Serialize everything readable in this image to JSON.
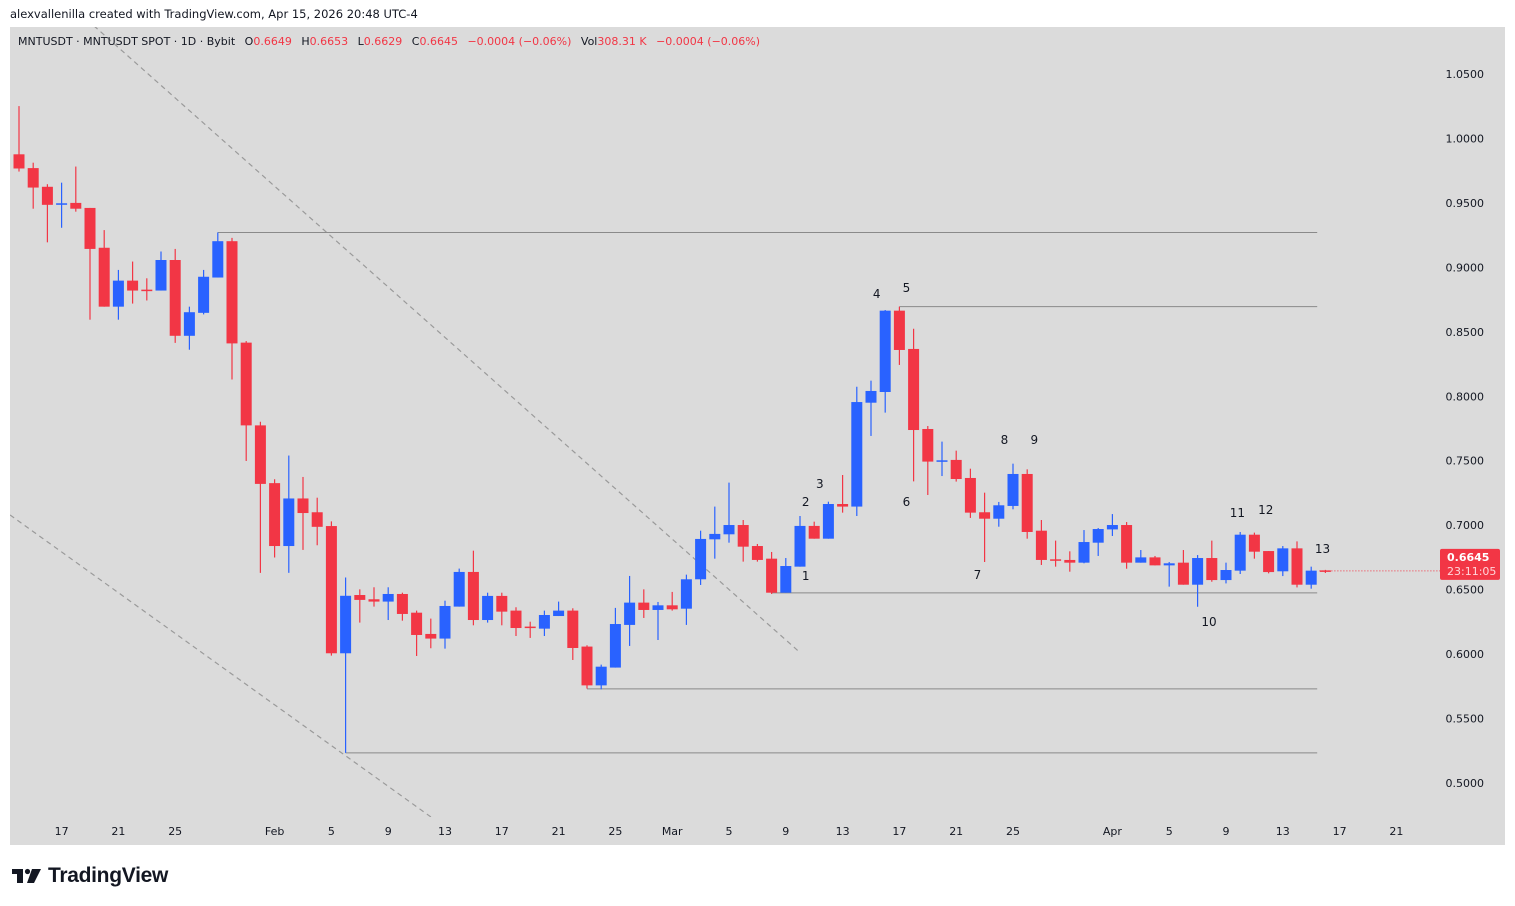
{
  "credit": "alexvallenilla created with TradingView.com, Apr 15, 2026 20:48 UTC-4",
  "legend": {
    "symbol": "MNTUSDT · MNTUSDT SPOT · 1D · Bybit",
    "o_label": "O",
    "o_value": "0.6649",
    "h_label": "H",
    "h_value": "0.6653",
    "l_label": "L",
    "l_value": "0.6629",
    "c_label": "C",
    "c_value": "0.6645",
    "change": "−0.0004 (−0.06%)",
    "vol_label": "Vol",
    "vol_value": "308.31 K",
    "vol_change": "−0.0004 (−0.06%)"
  },
  "brand": "TradingView",
  "colors": {
    "up": "#2962ff",
    "down": "#f23645",
    "background": "#dbdbdb",
    "level_line": "#8a8a8a",
    "trend_line": "#9a9a9a"
  },
  "chart_data": {
    "type": "candlestick",
    "title": "MNTUSDT · MNTUSDT SPOT · 1D · Bybit",
    "ylim": [
      0.47,
      1.08
    ],
    "y_ticks": [
      "0.5000",
      "0.5500",
      "0.6000",
      "0.6500",
      "0.7000",
      "0.7500",
      "0.8000",
      "0.8500",
      "0.9000",
      "0.9500",
      "1.0000",
      "1.0500"
    ],
    "x_ticks": [
      {
        "label": "17",
        "index": 3
      },
      {
        "label": "21",
        "index": 7
      },
      {
        "label": "25",
        "index": 11
      },
      {
        "label": "Feb",
        "index": 18
      },
      {
        "label": "5",
        "index": 22
      },
      {
        "label": "9",
        "index": 26
      },
      {
        "label": "13",
        "index": 30
      },
      {
        "label": "17",
        "index": 34
      },
      {
        "label": "21",
        "index": 38
      },
      {
        "label": "25",
        "index": 42
      },
      {
        "label": "Mar",
        "index": 46
      },
      {
        "label": "5",
        "index": 50
      },
      {
        "label": "9",
        "index": 54
      },
      {
        "label": "13",
        "index": 58
      },
      {
        "label": "17",
        "index": 62
      },
      {
        "label": "21",
        "index": 66
      },
      {
        "label": "25",
        "index": 70
      },
      {
        "label": "Apr",
        "index": 77
      },
      {
        "label": "5",
        "index": 81
      },
      {
        "label": "9",
        "index": 85
      },
      {
        "label": "13",
        "index": 89
      },
      {
        "label": "17",
        "index": 93
      },
      {
        "label": "21",
        "index": 97
      }
    ],
    "ohlc": [
      [
        0.9877,
        1.0251,
        0.9743,
        0.9767
      ],
      [
        0.977,
        0.9812,
        0.9455,
        0.9619
      ],
      [
        0.9625,
        0.9645,
        0.9194,
        0.9485
      ],
      [
        0.9491,
        0.9657,
        0.9307,
        0.9497
      ],
      [
        0.95,
        0.9782,
        0.9432,
        0.9455
      ],
      [
        0.9461,
        0.9461,
        0.8594,
        0.9143
      ],
      [
        0.9152,
        0.9289,
        0.8695,
        0.8695
      ],
      [
        0.8695,
        0.898,
        0.8594,
        0.8897
      ],
      [
        0.8897,
        0.9045,
        0.8719,
        0.882
      ],
      [
        0.8827,
        0.8915,
        0.8743,
        0.882
      ],
      [
        0.882,
        0.9123,
        0.882,
        0.9057
      ],
      [
        0.9057,
        0.9143,
        0.8414,
        0.8469
      ],
      [
        0.8469,
        0.8695,
        0.8361,
        0.8652
      ],
      [
        0.8647,
        0.898,
        0.8635,
        0.8927
      ],
      [
        0.8921,
        0.9271,
        0.8921,
        0.9203
      ],
      [
        0.9203,
        0.9229,
        0.813,
        0.841
      ],
      [
        0.8416,
        0.8428,
        0.7498,
        0.7774
      ],
      [
        0.7774,
        0.7802,
        0.663,
        0.732
      ],
      [
        0.7326,
        0.7356,
        0.6749,
        0.6838
      ],
      [
        0.6838,
        0.754,
        0.663,
        0.7207
      ],
      [
        0.7207,
        0.7374,
        0.6808,
        0.7094
      ],
      [
        0.71,
        0.7213,
        0.6844,
        0.6987
      ],
      [
        0.6993,
        0.7029,
        0.5988,
        0.6006
      ],
      [
        0.6006,
        0.6594,
        0.5233,
        0.6452
      ],
      [
        0.6458,
        0.6502,
        0.6244,
        0.642
      ],
      [
        0.6425,
        0.6518,
        0.6368,
        0.6407
      ],
      [
        0.6407,
        0.6518,
        0.6264,
        0.6466
      ],
      [
        0.6466,
        0.6476,
        0.6259,
        0.6311
      ],
      [
        0.6321,
        0.6337,
        0.5985,
        0.6148
      ],
      [
        0.6156,
        0.6275,
        0.6045,
        0.612
      ],
      [
        0.612,
        0.6414,
        0.6042,
        0.6373
      ],
      [
        0.6368,
        0.6663,
        0.6368,
        0.6637
      ],
      [
        0.6637,
        0.6802,
        0.6223,
        0.6264
      ],
      [
        0.6264,
        0.6476,
        0.6244,
        0.6451
      ],
      [
        0.6451,
        0.6476,
        0.6223,
        0.6329
      ],
      [
        0.6337,
        0.6363,
        0.614,
        0.6202
      ],
      [
        0.6213,
        0.6251,
        0.6125,
        0.6202
      ],
      [
        0.6197,
        0.6337,
        0.614,
        0.6303
      ],
      [
        0.6295,
        0.6407,
        0.6295,
        0.6337
      ],
      [
        0.6337,
        0.6355,
        0.5954,
        0.6047
      ],
      [
        0.6058,
        0.6068,
        0.5732,
        0.5757
      ],
      [
        0.5757,
        0.5918,
        0.5726,
        0.5902
      ],
      [
        0.5895,
        0.6358,
        0.5895,
        0.6233
      ],
      [
        0.6226,
        0.6606,
        0.6063,
        0.6399
      ],
      [
        0.6399,
        0.6502,
        0.628,
        0.6342
      ],
      [
        0.6342,
        0.6404,
        0.6109,
        0.6378
      ],
      [
        0.6378,
        0.6482,
        0.6337,
        0.6347
      ],
      [
        0.6352,
        0.6616,
        0.6226,
        0.658
      ],
      [
        0.658,
        0.6957,
        0.6536,
        0.6893
      ],
      [
        0.689,
        0.7144,
        0.674,
        0.6932
      ],
      [
        0.6929,
        0.733,
        0.6864,
        0.7001
      ],
      [
        0.7001,
        0.704,
        0.6717,
        0.6833
      ],
      [
        0.6838,
        0.6854,
        0.6717,
        0.673
      ],
      [
        0.674,
        0.6792,
        0.6466,
        0.6476
      ],
      [
        0.6476,
        0.6745,
        0.6476,
        0.6683
      ],
      [
        0.6678,
        0.7071,
        0.6678,
        0.6994
      ],
      [
        0.6994,
        0.7027,
        0.6895,
        0.6895
      ],
      [
        0.6895,
        0.7182,
        0.6895,
        0.7164
      ],
      [
        0.7164,
        0.7389,
        0.7097,
        0.7144
      ],
      [
        0.7144,
        0.8074,
        0.7071,
        0.7955
      ],
      [
        0.795,
        0.8121,
        0.7692,
        0.8041
      ],
      [
        0.8033,
        0.8669,
        0.7873,
        0.8664
      ],
      [
        0.8664,
        0.8695,
        0.8243,
        0.8359
      ],
      [
        0.8367,
        0.8524,
        0.734,
        0.7738
      ],
      [
        0.7746,
        0.7769,
        0.7234,
        0.7493
      ],
      [
        0.7493,
        0.7648,
        0.7381,
        0.7503
      ],
      [
        0.7506,
        0.7578,
        0.7338,
        0.7358
      ],
      [
        0.7366,
        0.7438,
        0.7056,
        0.7097
      ],
      [
        0.71,
        0.7252,
        0.6714,
        0.705
      ],
      [
        0.705,
        0.718,
        0.6988,
        0.7154
      ],
      [
        0.7149,
        0.7477,
        0.7123,
        0.7397
      ],
      [
        0.7397,
        0.7433,
        0.6895,
        0.6947
      ],
      [
        0.6957,
        0.704,
        0.6691,
        0.673
      ],
      [
        0.6735,
        0.688,
        0.6678,
        0.6724
      ],
      [
        0.673,
        0.6797,
        0.6639,
        0.6709
      ],
      [
        0.6709,
        0.6962,
        0.6704,
        0.6869
      ],
      [
        0.6864,
        0.6978,
        0.6761,
        0.697
      ],
      [
        0.6967,
        0.7086,
        0.6916,
        0.7001
      ],
      [
        0.7001,
        0.7024,
        0.6662,
        0.6709
      ],
      [
        0.6709,
        0.6807,
        0.6709,
        0.675
      ],
      [
        0.675,
        0.6761,
        0.6688,
        0.6688
      ],
      [
        0.6688,
        0.6714,
        0.6523,
        0.6704
      ],
      [
        0.6709,
        0.6807,
        0.6538,
        0.6538
      ],
      [
        0.6538,
        0.6768,
        0.6367,
        0.6745
      ],
      [
        0.6745,
        0.688,
        0.6561,
        0.6574
      ],
      [
        0.6574,
        0.6709,
        0.6548,
        0.6652
      ],
      [
        0.6647,
        0.6947,
        0.6621,
        0.6926
      ],
      [
        0.6926,
        0.6942,
        0.674,
        0.6794
      ],
      [
        0.6799,
        0.6799,
        0.6626,
        0.6636
      ],
      [
        0.6642,
        0.6838,
        0.6605,
        0.682
      ],
      [
        0.682,
        0.6874,
        0.6517,
        0.6538
      ],
      [
        0.6538,
        0.6678,
        0.6507,
        0.6647
      ],
      [
        0.6649,
        0.6653,
        0.6629,
        0.6645
      ]
    ],
    "levels": [
      {
        "price": 0.927,
        "from_index": 14,
        "to_index": 91
      },
      {
        "price": 0.8695,
        "from_index": 62,
        "to_index": 91
      },
      {
        "price": 0.6475,
        "from_index": 53,
        "to_index": 91
      },
      {
        "price": 0.573,
        "from_index": 40,
        "to_index": 91
      },
      {
        "price": 0.5233,
        "from_index": 23,
        "to_index": 91
      }
    ],
    "trendlines": [
      {
        "from": [
          2.9,
          1.1106
        ],
        "to": [
          55,
          0.6012
        ]
      },
      {
        "from": [
          -0.63,
          0.7079
        ],
        "to": [
          29.3,
          0.4713
        ]
      }
    ],
    "annotations": [
      {
        "text": "1",
        "index": 55.4,
        "price": 0.6605
      },
      {
        "text": "2",
        "index": 55.4,
        "price": 0.7179
      },
      {
        "text": "3",
        "index": 56.4,
        "price": 0.7319
      },
      {
        "text": "4",
        "index": 60.4,
        "price": 0.8793
      },
      {
        "text": "5",
        "index": 62.5,
        "price": 0.884
      },
      {
        "text": "6",
        "index": 62.5,
        "price": 0.7179
      },
      {
        "text": "7",
        "index": 67.5,
        "price": 0.6613
      },
      {
        "text": "8",
        "index": 69.4,
        "price": 0.766
      },
      {
        "text": "9",
        "index": 71.5,
        "price": 0.766
      },
      {
        "text": "10",
        "index": 83.8,
        "price": 0.6249
      },
      {
        "text": "11",
        "index": 85.8,
        "price": 0.7094
      },
      {
        "text": "12",
        "index": 87.8,
        "price": 0.7117
      },
      {
        "text": "13",
        "index": 91.8,
        "price": 0.6815
      }
    ],
    "last_price": {
      "price": "0.6645",
      "countdown": "23:11:05",
      "value": 0.6645
    }
  }
}
